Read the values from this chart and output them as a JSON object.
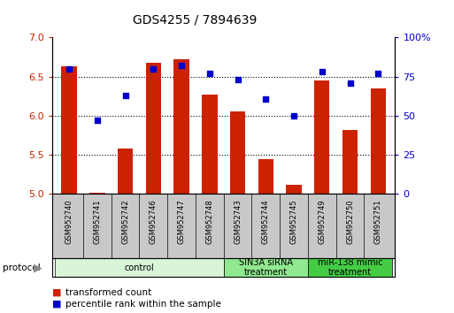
{
  "title": "GDS4255 / 7894639",
  "samples": [
    "GSM952740",
    "GSM952741",
    "GSM952742",
    "GSM952746",
    "GSM952747",
    "GSM952748",
    "GSM952743",
    "GSM952744",
    "GSM952745",
    "GSM952749",
    "GSM952750",
    "GSM952751"
  ],
  "transformed_count": [
    6.63,
    5.02,
    5.58,
    6.68,
    6.72,
    6.27,
    6.06,
    5.45,
    5.12,
    6.45,
    5.82,
    6.35
  ],
  "percentile_rank": [
    80,
    47,
    63,
    80,
    82,
    77,
    73,
    61,
    50,
    78,
    71,
    77
  ],
  "groups": [
    {
      "label": "control",
      "start": 0,
      "end": 6,
      "color": "#d8f5d8"
    },
    {
      "label": "SIN3A siRNA\ntreatment",
      "start": 6,
      "end": 9,
      "color": "#90e890"
    },
    {
      "label": "miR-138 mimic\ntreatment",
      "start": 9,
      "end": 12,
      "color": "#44cc44"
    }
  ],
  "ylim_left": [
    5.0,
    7.0
  ],
  "yticks_left": [
    5.0,
    5.5,
    6.0,
    6.5,
    7.0
  ],
  "yticks_right_labels": [
    "0",
    "25",
    "50",
    "75",
    "100%"
  ],
  "bar_color": "#cc2200",
  "dot_color": "#0000cc",
  "label_color_left": "#cc2200",
  "label_color_right": "#0000cc",
  "legend_items": [
    {
      "label": "transformed count",
      "color": "#cc2200"
    },
    {
      "label": "percentile rank within the sample",
      "color": "#0000cc"
    }
  ],
  "sample_bg_color": "#c8c8c8",
  "plot_bg_color": "#ffffff"
}
